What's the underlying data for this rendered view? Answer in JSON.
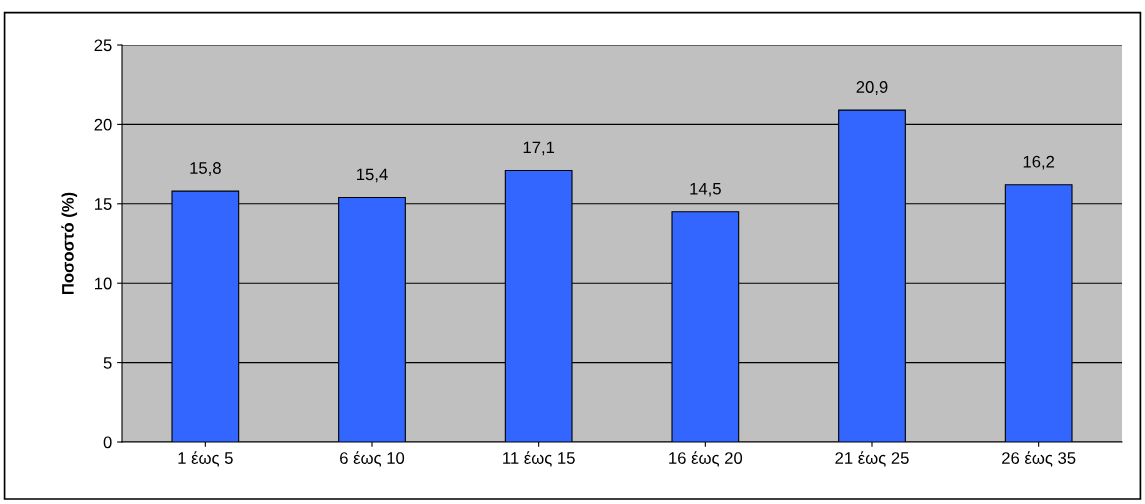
{
  "chart_data": {
    "type": "bar",
    "ylabel": "Ποσοστό (%)",
    "categories": [
      "1 έως 5",
      "6 έως 10",
      "11 έως 15",
      "16 έως 20",
      "21 έως 25",
      "26 έως 35"
    ],
    "values": [
      15.8,
      15.4,
      17.1,
      14.5,
      20.9,
      16.2
    ],
    "value_labels": [
      "15,8",
      "15,4",
      "17,1",
      "14,5",
      "20,9",
      "16,2"
    ],
    "color": "#3366ff",
    "ylim": [
      0,
      25
    ],
    "yticks": [
      0,
      5,
      10,
      15,
      20,
      25
    ],
    "grid": "y"
  }
}
